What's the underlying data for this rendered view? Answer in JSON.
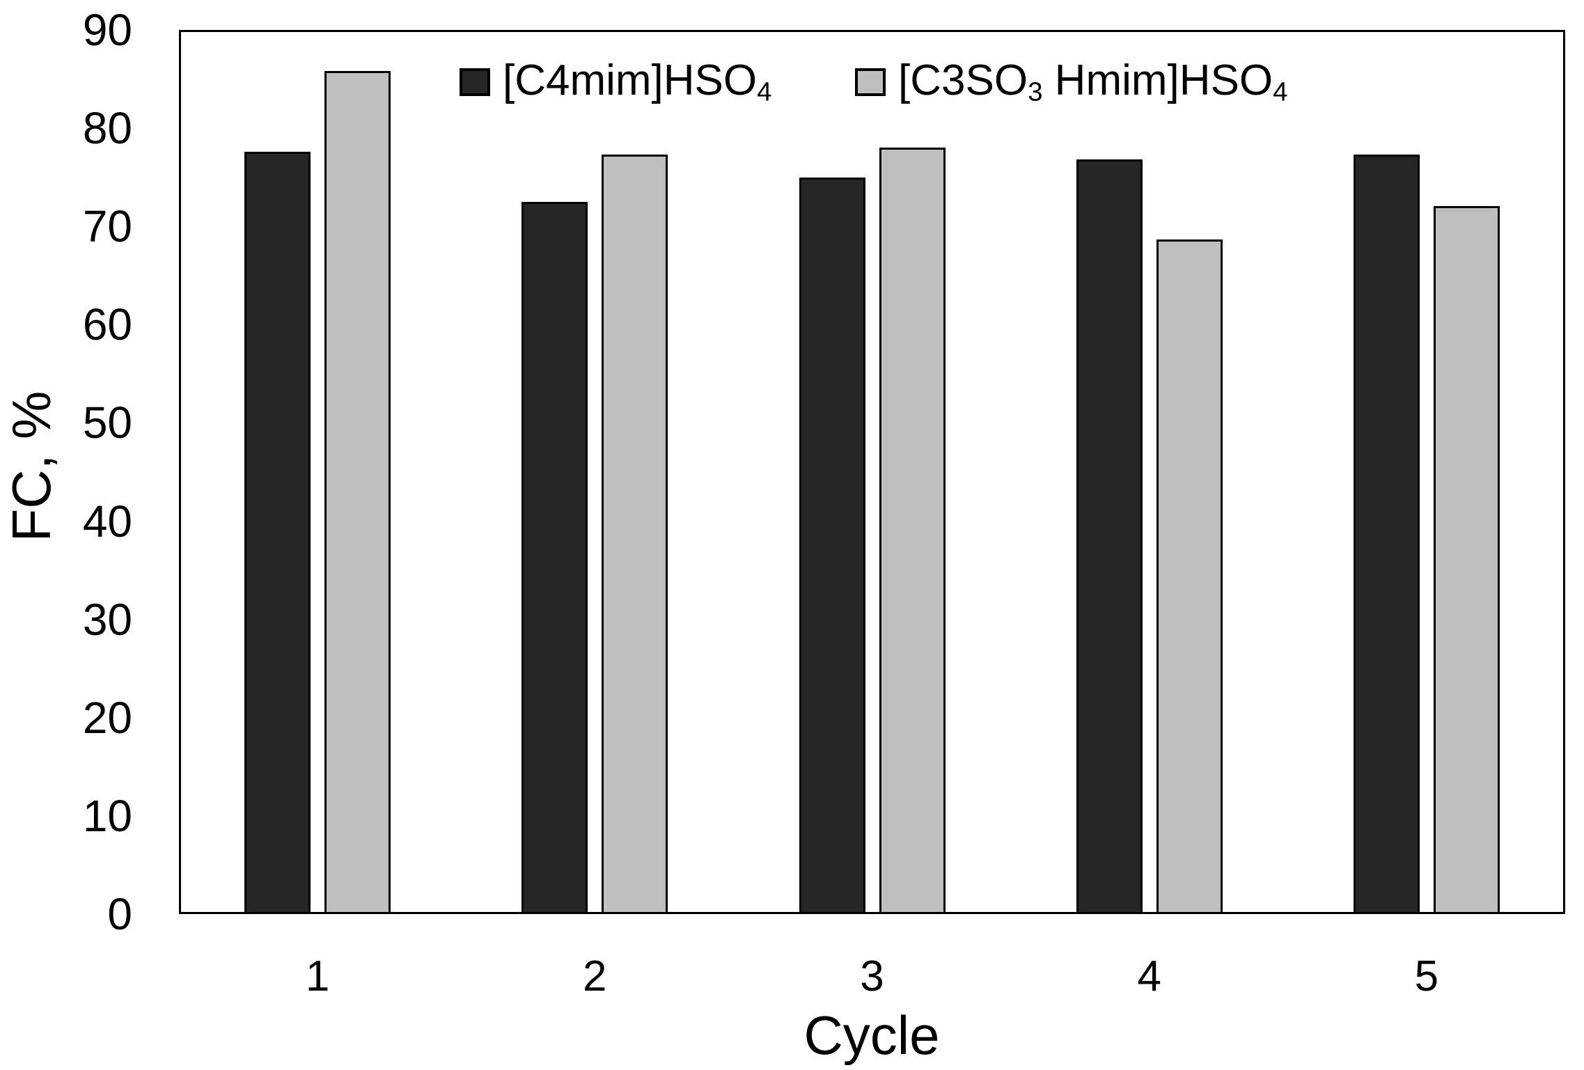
{
  "chart_data": {
    "type": "bar",
    "title": "",
    "xlabel": "Cycle",
    "ylabel": "FC, %",
    "categories": [
      "1",
      "2",
      "3",
      "4",
      "5"
    ],
    "series": [
      {
        "name": "[C4mim]HSO4",
        "label_segments": [
          {
            "text": "[C4mim]HSO",
            "sub": false
          },
          {
            "text": "4",
            "sub": true
          }
        ],
        "color": "#262626",
        "values": [
          77.6,
          72.5,
          75.0,
          76.8,
          77.3
        ]
      },
      {
        "name": "[C3SO3 Hmim]HSO4",
        "label_segments": [
          {
            "text": "[C3SO",
            "sub": false
          },
          {
            "text": "3",
            "sub": true
          },
          {
            "text": " Hmim]HSO",
            "sub": false
          },
          {
            "text": "4",
            "sub": true
          }
        ],
        "color": "#bfbfbf",
        "values": [
          85.8,
          77.3,
          78.0,
          68.7,
          72.1
        ]
      }
    ],
    "ylim": [
      0,
      90
    ],
    "yticks": [
      0,
      10,
      20,
      30,
      40,
      50,
      60,
      70,
      80,
      90
    ],
    "grid": false,
    "legend_position": "top-center",
    "bar_outline_color": "#000000",
    "axis_color": "#000000",
    "background_color": "#ffffff"
  }
}
